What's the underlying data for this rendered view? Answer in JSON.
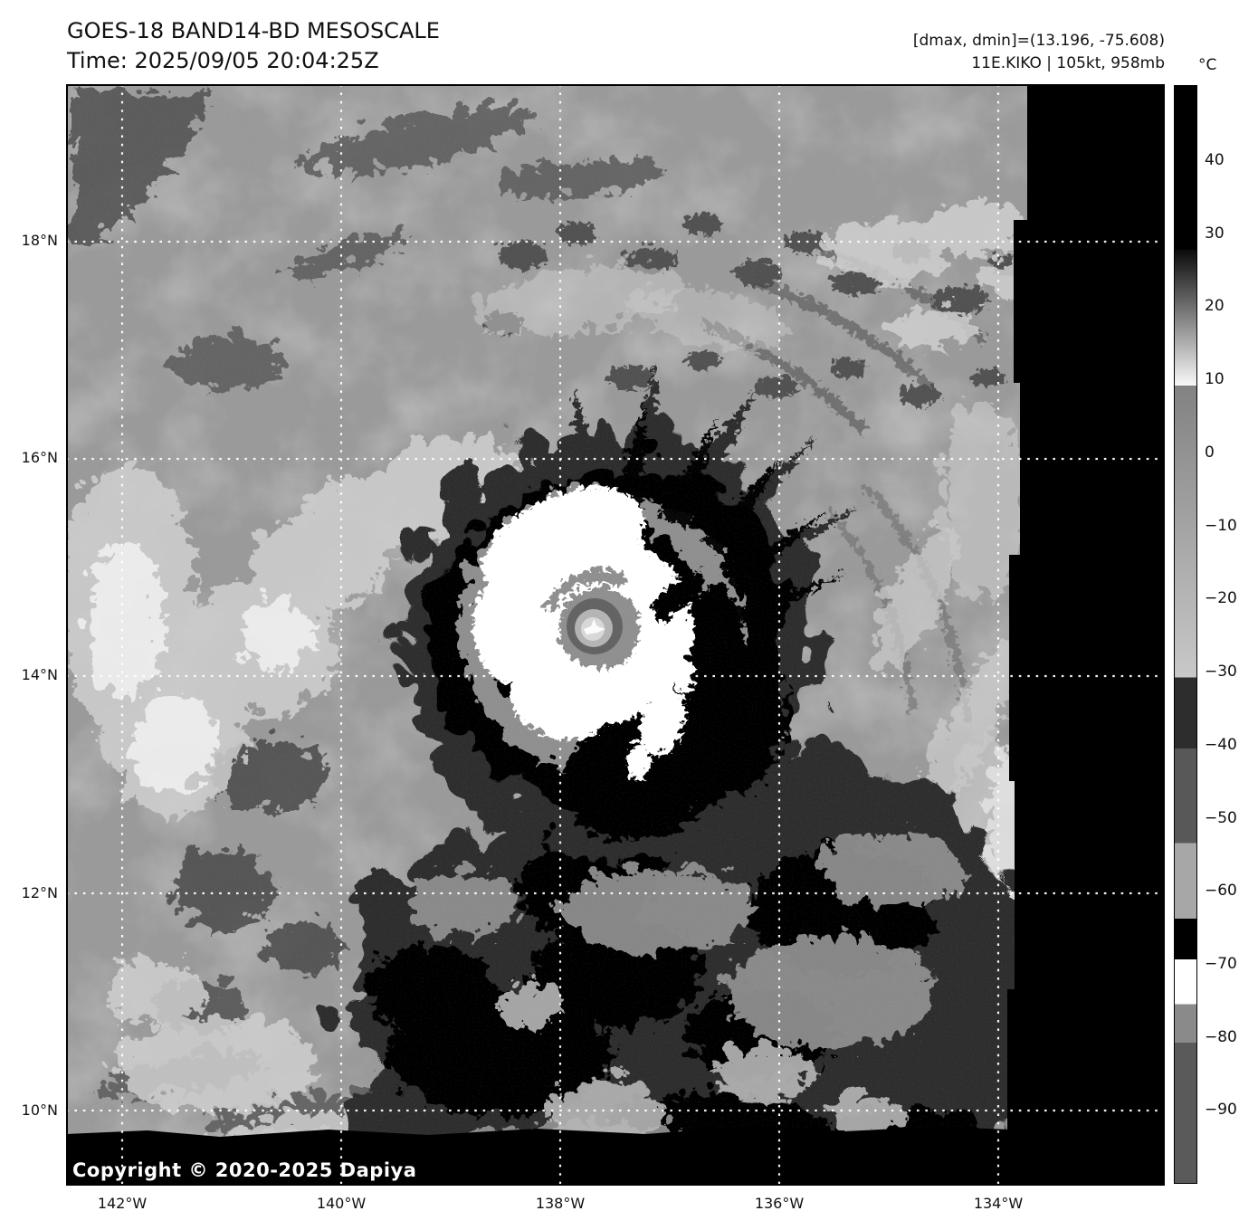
{
  "header": {
    "title": "GOES-18 BAND14-BD MESOSCALE",
    "time": "Time: 2025/09/05 20:04:25Z",
    "dmax_dmin": "[dmax, dmin]=(13.196, -75.608)",
    "storm_info": "11E.KIKO | 105kt, 958mb"
  },
  "plot": {
    "copyright": "Copyright © 2020-2025 Dapiya"
  },
  "axes": {
    "lat_ticks": [
      "18°N",
      "16°N",
      "14°N",
      "12°N",
      "10°N"
    ],
    "lon_ticks": [
      "142°W",
      "140°W",
      "138°W",
      "136°W",
      "134°W"
    ]
  },
  "colorbar": {
    "unit": "°C",
    "ticks": [
      "40",
      "30",
      "20",
      "10",
      "0",
      "−10",
      "−20",
      "−30",
      "−40",
      "−50",
      "−60",
      "−70",
      "−80",
      "−90"
    ],
    "segments": [
      {
        "from_pct": 0,
        "to_pct": 14.9,
        "from": "#000000",
        "to": "#000000"
      },
      {
        "from_pct": 14.9,
        "to_pct": 27.3,
        "from": "#0a0a0a",
        "to": "#f8f8f8"
      },
      {
        "from_pct": 27.3,
        "to_pct": 53.9,
        "from": "#828282",
        "to": "#c8c8c8"
      },
      {
        "from_pct": 53.9,
        "to_pct": 60.4,
        "from": "#2d2d2d",
        "to": "#2d2d2d"
      },
      {
        "from_pct": 60.4,
        "to_pct": 69.0,
        "from": "#585858",
        "to": "#585858"
      },
      {
        "from_pct": 69.0,
        "to_pct": 75.9,
        "from": "#a7a7a7",
        "to": "#a7a7a7"
      },
      {
        "from_pct": 75.9,
        "to_pct": 79.6,
        "from": "#000000",
        "to": "#000000"
      },
      {
        "from_pct": 79.6,
        "to_pct": 83.7,
        "from": "#ffffff",
        "to": "#ffffff"
      },
      {
        "from_pct": 83.7,
        "to_pct": 87.2,
        "from": "#8a8a8a",
        "to": "#8a8a8a"
      },
      {
        "from_pct": 87.2,
        "to_pct": 100,
        "from": "#5a5a5a",
        "to": "#5a5a5a"
      }
    ]
  },
  "chart_data": {
    "type": "heatmap",
    "title": "GOES-18 BAND14-BD MESOSCALE",
    "time_utc": "2025/09/05 20:04:25Z",
    "satellite": "GOES-18",
    "band": "BAND14-BD",
    "sector": "MESOSCALE",
    "storm": {
      "designation": "11E",
      "name": "KIKO",
      "intensity_kt": 105,
      "pressure_mb": 958
    },
    "dmax_c": 13.196,
    "dmin_c": -75.608,
    "xlabel_ticks_deg_w": [
      142,
      140,
      138,
      136,
      134
    ],
    "ylabel_ticks_deg_n": [
      18,
      16,
      14,
      12,
      10
    ],
    "lon_range_deg_w_approx": [
      142.5,
      132.5
    ],
    "lat_range_deg_n_approx": [
      9.4,
      19.4
    ],
    "storm_center_approx": {
      "lat_deg_n": 14.5,
      "lon_deg_w": 137.6
    },
    "grid": "dotted-white, 2-degree spacing",
    "colorbar_unit": "°C",
    "colorbar_tick_values_c": [
      40,
      30,
      20,
      10,
      0,
      -10,
      -20,
      -30,
      -40,
      -50,
      -60,
      -70,
      -80,
      -90
    ],
    "colorbar_range_c_approx": [
      50,
      -100
    ],
    "bd_enhancement_segments_c": [
      {
        "from": 50,
        "to": 28,
        "shade": "black"
      },
      {
        "from": 28,
        "to": 9.5,
        "shade": "ramp black to white"
      },
      {
        "from": 9.5,
        "to": -30,
        "shade": "ramp medium gray to light gray"
      },
      {
        "from": -30,
        "to": -40,
        "shade": "very dark gray"
      },
      {
        "from": -40,
        "to": -53.5,
        "shade": "dark gray"
      },
      {
        "from": -53.5,
        "to": -64,
        "shade": "light gray"
      },
      {
        "from": -64,
        "to": -69.5,
        "shade": "black"
      },
      {
        "from": -69.5,
        "to": -75.6,
        "shade": "white"
      },
      {
        "from": -75.6,
        "to": -81,
        "shade": "medium gray"
      },
      {
        "from": -81,
        "to": -100,
        "shade": "dark gray"
      }
    ],
    "no_data_regions": [
      "right vertical strip (east of ~134.2W)",
      "bottom band (south of ~10.2N)"
    ]
  }
}
